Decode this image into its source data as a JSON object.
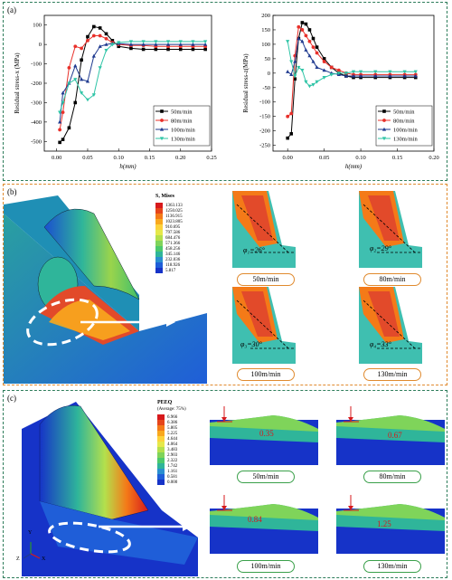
{
  "panel_a": {
    "label": "(a)",
    "chart_data": [
      {
        "type": "line",
        "xlabel": "h(mm)",
        "ylabel": "Residual stress-x (MPa)",
        "xlim": [
          -0.02,
          0.25
        ],
        "ylim": [
          -550,
          150
        ],
        "xticks": [
          "0.00",
          "0.05",
          "0.10",
          "0.15",
          "0.20",
          "0.25"
        ],
        "yticks": [
          "-500",
          "-400",
          "-300",
          "-200",
          "-100",
          "0",
          "100"
        ],
        "legend": "bottom-right",
        "series": [
          {
            "name": "50m/min",
            "color": "#000000",
            "marker": "square",
            "x": [
              0.005,
              0.01,
              0.02,
              0.03,
              0.04,
              0.05,
              0.06,
              0.07,
              0.08,
              0.09,
              0.1,
              0.12,
              0.14,
              0.16,
              0.18,
              0.2,
              0.22,
              0.24
            ],
            "y": [
              -505,
              -490,
              -430,
              -300,
              -80,
              40,
              92,
              85,
              55,
              20,
              -10,
              -20,
              -25,
              -25,
              -25,
              -25,
              -25,
              -25
            ]
          },
          {
            "name": "80m/min",
            "color": "#e8302a",
            "marker": "circle",
            "x": [
              0.005,
              0.01,
              0.02,
              0.03,
              0.04,
              0.05,
              0.06,
              0.07,
              0.08,
              0.09,
              0.1,
              0.12,
              0.14,
              0.16,
              0.18,
              0.2,
              0.22,
              0.24
            ],
            "y": [
              -440,
              -350,
              -120,
              -10,
              -20,
              20,
              45,
              45,
              30,
              10,
              0,
              -5,
              -5,
              -10,
              -10,
              -10,
              -10,
              -10
            ]
          },
          {
            "name": "100m/min",
            "color": "#1f3a8f",
            "marker": "triangle",
            "x": [
              0.005,
              0.01,
              0.02,
              0.03,
              0.04,
              0.05,
              0.06,
              0.07,
              0.08,
              0.09,
              0.1,
              0.12,
              0.14,
              0.16,
              0.18,
              0.2,
              0.22,
              0.24
            ],
            "y": [
              -400,
              -250,
              -200,
              -110,
              -180,
              -190,
              -60,
              -10,
              0,
              5,
              5,
              0,
              0,
              0,
              0,
              0,
              0,
              0
            ]
          },
          {
            "name": "130m/min",
            "color": "#2ec4a6",
            "marker": "down-triangle",
            "x": [
              0.005,
              0.01,
              0.02,
              0.03,
              0.04,
              0.05,
              0.06,
              0.07,
              0.08,
              0.09,
              0.1,
              0.12,
              0.14,
              0.16,
              0.18,
              0.2,
              0.22,
              0.24
            ],
            "y": [
              -350,
              -300,
              -200,
              -180,
              -250,
              -285,
              -260,
              -120,
              -30,
              0,
              10,
              15,
              15,
              15,
              15,
              15,
              15,
              15
            ]
          }
        ]
      },
      {
        "type": "line",
        "xlabel": "h(mm)",
        "ylabel": "Residual stress-z(MPa)",
        "xlim": [
          -0.02,
          0.2
        ],
        "ylim": [
          -270,
          200
        ],
        "xticks": [
          "0.00",
          "0.05",
          "0.10",
          "0.15",
          "0.20"
        ],
        "yticks": [
          "-250",
          "-200",
          "-150",
          "-100",
          "-50",
          "0",
          "50",
          "100",
          "150",
          "200"
        ],
        "legend": "bottom-right",
        "series": [
          {
            "name": "50m/min",
            "color": "#000000",
            "marker": "square",
            "x": [
              0.0,
              0.005,
              0.01,
              0.015,
              0.02,
              0.025,
              0.03,
              0.035,
              0.04,
              0.05,
              0.06,
              0.07,
              0.08,
              0.09,
              0.1,
              0.12,
              0.14,
              0.16,
              0.175
            ],
            "y": [
              -225,
              -210,
              -20,
              120,
              175,
              170,
              150,
              120,
              90,
              50,
              20,
              0,
              -10,
              -15,
              -15,
              -15,
              -15,
              -15,
              -15
            ]
          },
          {
            "name": "80m/min",
            "color": "#e8302a",
            "marker": "circle",
            "x": [
              0.0,
              0.005,
              0.01,
              0.015,
              0.02,
              0.025,
              0.03,
              0.035,
              0.04,
              0.05,
              0.06,
              0.07,
              0.08,
              0.09,
              0.1,
              0.12,
              0.14,
              0.16,
              0.175
            ],
            "y": [
              -150,
              -140,
              60,
              160,
              150,
              130,
              110,
              90,
              70,
              40,
              20,
              10,
              0,
              -5,
              -5,
              -5,
              -5,
              -5,
              -5
            ]
          },
          {
            "name": "100m/min",
            "color": "#1f3a8f",
            "marker": "triangle",
            "x": [
              0.0,
              0.005,
              0.01,
              0.015,
              0.02,
              0.025,
              0.03,
              0.035,
              0.04,
              0.05,
              0.06,
              0.07,
              0.08,
              0.09,
              0.1,
              0.12,
              0.14,
              0.16,
              0.175
            ],
            "y": [
              5,
              -5,
              40,
              120,
              110,
              80,
              60,
              40,
              20,
              10,
              0,
              -5,
              -10,
              -10,
              -10,
              -10,
              -10,
              -10,
              -10
            ]
          },
          {
            "name": "130m/min",
            "color": "#2ec4a6",
            "marker": "down-triangle",
            "x": [
              0.0,
              0.005,
              0.01,
              0.015,
              0.02,
              0.025,
              0.03,
              0.035,
              0.04,
              0.05,
              0.06,
              0.07,
              0.08,
              0.09,
              0.1,
              0.12,
              0.14,
              0.16,
              0.175
            ],
            "y": [
              110,
              40,
              -10,
              20,
              10,
              -30,
              -45,
              -40,
              -30,
              -15,
              -5,
              0,
              0,
              5,
              5,
              5,
              5,
              5,
              5
            ]
          }
        ]
      }
    ]
  },
  "panel_b": {
    "label": "(b)",
    "legend_title": "S, Mises",
    "legend_values": [
      "1363.133",
      "1250.025",
      "1136.915",
      "1023.805",
      "910.695",
      "797.586",
      "684.476",
      "571.366",
      "458.256",
      "345.146",
      "232.036",
      "118.926",
      "5.817"
    ],
    "legend_colors": [
      "#d7191c",
      "#e6451a",
      "#f47a18",
      "#f9a81d",
      "#fdd23a",
      "#e6e84a",
      "#b4e04c",
      "#7fd45a",
      "#4cc96c",
      "#2fb59a",
      "#2a8fd0",
      "#1f5ed8",
      "#1633c8"
    ],
    "cases": [
      {
        "angle": "φ₁=26°",
        "speed": "50m/min"
      },
      {
        "angle": "φ₂=29°",
        "speed": "80m/min"
      },
      {
        "angle": "φ₃=30°",
        "speed": "100m/min"
      },
      {
        "angle": "φ₄=33°",
        "speed": "130m/min"
      }
    ]
  },
  "panel_c": {
    "label": "(c)",
    "legend_title": "PEEQ",
    "legend_subtitle": "(Average: 75%)",
    "legend_values": [
      "6.966",
      "6.386",
      "5.805",
      "5.225",
      "4.644",
      "4.064",
      "3.483",
      "2.903",
      "2.322",
      "1.742",
      "1.161",
      "0.581",
      "0.000"
    ],
    "legend_colors": [
      "#d7191c",
      "#e6451a",
      "#f47a18",
      "#f9a81d",
      "#fdd23a",
      "#e6e84a",
      "#b4e04c",
      "#7fd45a",
      "#4cc96c",
      "#2fb59a",
      "#2a8fd0",
      "#1f5ed8",
      "#1633c8"
    ],
    "cases": [
      {
        "depth": "0.35",
        "speed": "50m/min"
      },
      {
        "depth": "0.67",
        "speed": "80m/min"
      },
      {
        "depth": "0.84",
        "speed": "100m/min"
      },
      {
        "depth": "1.25",
        "speed": "130m/min"
      }
    ],
    "axes": {
      "y": "Y",
      "z": "Z",
      "x": "X"
    }
  }
}
